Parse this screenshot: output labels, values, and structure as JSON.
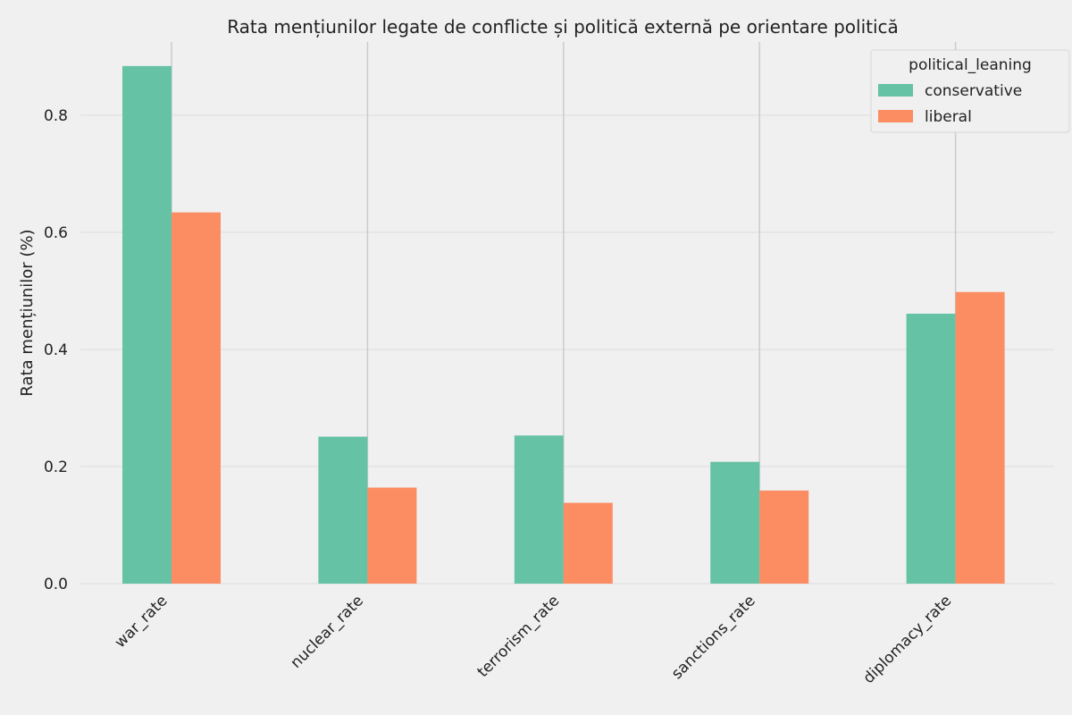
{
  "chart_data": {
    "type": "bar",
    "title": "Rata mențiunilor legate de conflicte și politică externă pe orientare politică",
    "xlabel": "",
    "ylabel": "Rata mențiunilor (%)",
    "categories": [
      "war_rate",
      "nuclear_rate",
      "terrorism_rate",
      "sanctions_rate",
      "diplomacy_rate"
    ],
    "series": [
      {
        "name": "conservative",
        "color": "#66c2a5",
        "values": [
          0.884,
          0.251,
          0.253,
          0.208,
          0.461
        ]
      },
      {
        "name": "liberal",
        "color": "#fc8d62",
        "values": [
          0.634,
          0.164,
          0.138,
          0.159,
          0.498
        ]
      }
    ],
    "ylim": [
      0,
      0.925
    ],
    "yticks": [
      0.0,
      0.2,
      0.4,
      0.6,
      0.8
    ],
    "ytick_labels": [
      "0.0",
      "0.2",
      "0.4",
      "0.6",
      "0.8"
    ],
    "grid": true,
    "legend": {
      "title": "political_leaning",
      "position": "top-right"
    }
  }
}
